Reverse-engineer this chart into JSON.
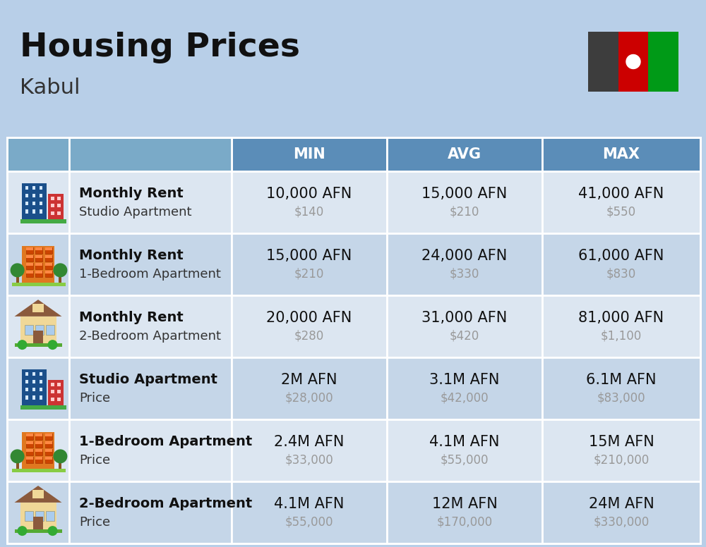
{
  "title": "Housing Prices",
  "subtitle": "Kabul",
  "background_color": "#b8cfe8",
  "header_color": "#5b8db8",
  "header_text_color": "#ffffff",
  "row_colors": [
    "#dce6f1",
    "#c8d8ea"
  ],
  "col_header": [
    "",
    "",
    "MIN",
    "AVG",
    "MAX"
  ],
  "rows": [
    {
      "icon_type": "blue_red",
      "label_bold": "Monthly Rent",
      "label_sub": "Studio Apartment",
      "min_afn": "10,000 AFN",
      "min_usd": "$140",
      "avg_afn": "15,000 AFN",
      "avg_usd": "$210",
      "max_afn": "41,000 AFN",
      "max_usd": "$550"
    },
    {
      "icon_type": "orange_trees",
      "label_bold": "Monthly Rent",
      "label_sub": "1-Bedroom Apartment",
      "min_afn": "15,000 AFN",
      "min_usd": "$210",
      "avg_afn": "24,000 AFN",
      "avg_usd": "$330",
      "max_afn": "61,000 AFN",
      "max_usd": "$830"
    },
    {
      "icon_type": "beige_roof",
      "label_bold": "Monthly Rent",
      "label_sub": "2-Bedroom Apartment",
      "min_afn": "20,000 AFN",
      "min_usd": "$280",
      "avg_afn": "31,000 AFN",
      "avg_usd": "$420",
      "max_afn": "81,000 AFN",
      "max_usd": "$1,100"
    },
    {
      "icon_type": "blue_red",
      "label_bold": "Studio Apartment",
      "label_sub": "Price",
      "min_afn": "2M AFN",
      "min_usd": "$28,000",
      "avg_afn": "3.1M AFN",
      "avg_usd": "$42,000",
      "max_afn": "6.1M AFN",
      "max_usd": "$83,000"
    },
    {
      "icon_type": "orange_trees",
      "label_bold": "1-Bedroom Apartment",
      "label_sub": "Price",
      "min_afn": "2.4M AFN",
      "min_usd": "$33,000",
      "avg_afn": "4.1M AFN",
      "avg_usd": "$55,000",
      "max_afn": "15M AFN",
      "max_usd": "$210,000"
    },
    {
      "icon_type": "beige_roof",
      "label_bold": "2-Bedroom Apartment",
      "label_sub": "Price",
      "min_afn": "4.1M AFN",
      "min_usd": "$55,000",
      "avg_afn": "12M AFN",
      "avg_usd": "$170,000",
      "max_afn": "24M AFN",
      "max_usd": "$330,000"
    }
  ],
  "title_fontsize": 34,
  "subtitle_fontsize": 22,
  "header_fontsize": 15,
  "afn_fontsize": 15,
  "usd_fontsize": 12,
  "label_bold_fontsize": 14,
  "label_sub_fontsize": 13
}
